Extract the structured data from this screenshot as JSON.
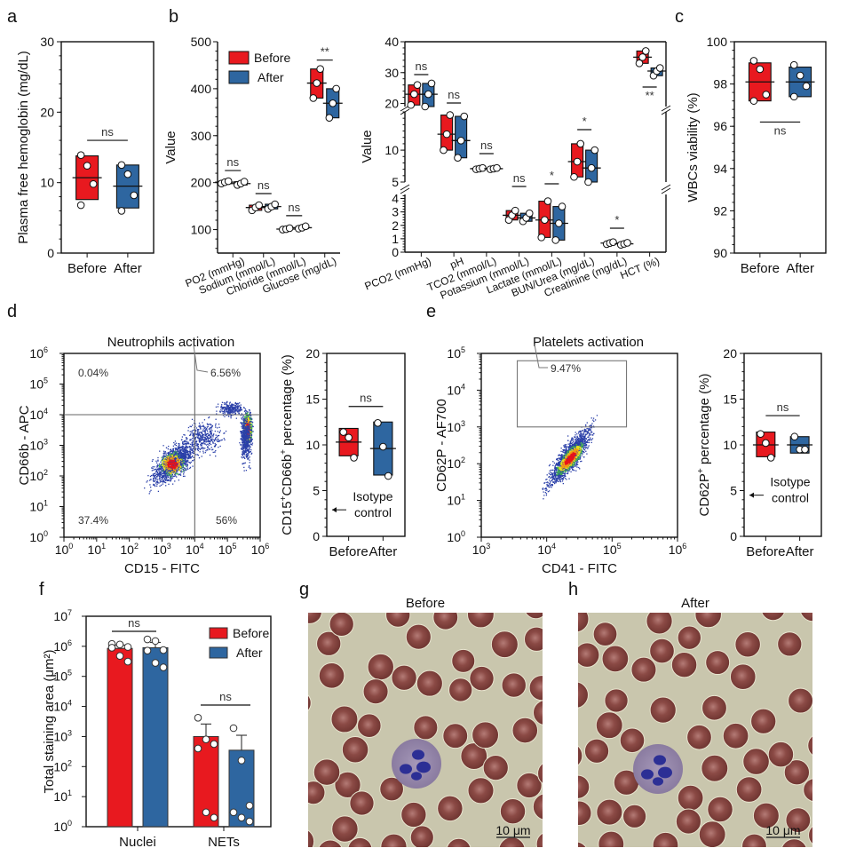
{
  "colors": {
    "before": "#e8191f",
    "after": "#2e66a0"
  },
  "legend": {
    "before": "Before",
    "after": "After"
  },
  "chart_data": [
    {
      "id": "a",
      "panel_label": "a",
      "type": "box",
      "ylabel": "Plasma free hemoglobin (mg/dL)",
      "ylim": [
        0,
        30
      ],
      "yticks": [
        0,
        10,
        20,
        30
      ],
      "categories": [
        "Before",
        "After"
      ],
      "series": [
        {
          "name": "Before",
          "min": 7.6,
          "max": 13.8,
          "median": 10.7,
          "points": [
            13.9,
            12.4,
            9.8,
            6.8
          ]
        },
        {
          "name": "After",
          "min": 6.4,
          "max": 12.5,
          "median": 9.5,
          "points": [
            12.5,
            11.2,
            8.2,
            6.0
          ]
        }
      ],
      "annotations": [
        {
          "text": "ns",
          "y": 16
        }
      ]
    },
    {
      "id": "b1",
      "panel_label": "b",
      "type": "box",
      "ylabel": "Value",
      "ylim": [
        50,
        500
      ],
      "yticks": [
        100,
        200,
        300,
        400,
        500
      ],
      "categories": [
        "PO2 (mmHg)",
        "Sodium (mmol/L)",
        "Chloride (mmol/L)",
        "Glucose (mg/dL)"
      ],
      "series": [
        {
          "name": "Before",
          "boxes": [
            [
              198,
              203,
              201
            ],
            [
              141,
              152,
              147
            ],
            [
              100,
              103,
              101
            ],
            [
              380,
              442,
              412
            ]
          ]
        },
        {
          "name": "After",
          "boxes": [
            [
              195,
              202,
              198
            ],
            [
              144,
              154,
              149
            ],
            [
              102,
              107,
              104
            ],
            [
              338,
              400,
              369
            ]
          ]
        }
      ],
      "annotations": [
        "ns",
        "ns",
        "ns",
        "**"
      ],
      "legend_position": "top-left"
    },
    {
      "id": "b2",
      "type": "box",
      "broken_axis": true,
      "ylabel": "Value",
      "segments": [
        {
          "range": [
            0,
            4.3
          ],
          "ticks": [
            0,
            1,
            2,
            3,
            4
          ]
        },
        {
          "range": [
            5,
            16
          ],
          "ticks": [
            5,
            10
          ]
        },
        {
          "range": [
            19,
            40
          ],
          "ticks": [
            20,
            30,
            40
          ]
        }
      ],
      "categories": [
        "PCO2 (mmHg)",
        "pH",
        "TCO2 (mmol/L)",
        "Potassium (mmol/L)",
        "Lactate (mmol/L)",
        "BUN/Urea (mg/dL)",
        "Creatinine (mg/dL)",
        "HCT (%)"
      ],
      "series": [
        {
          "name": "Before",
          "boxes": [
            [
              19.5,
              26,
              23
            ],
            [
              10,
              15.5,
              12.5
            ],
            [
              7,
              7.2,
              7.1
            ],
            [
              2.4,
              3.1,
              2.75
            ],
            [
              1.1,
              3.8,
              2.4
            ],
            [
              5.8,
              11,
              8.2
            ],
            [
              0.6,
              0.75,
              0.68
            ],
            [
              33,
              37,
              35
            ]
          ]
        },
        {
          "name": "After",
          "boxes": [
            [
              19,
              26.5,
              23
            ],
            [
              8.8,
              15.3,
              11.5
            ],
            [
              7,
              7.2,
              7.1
            ],
            [
              2.3,
              2.9,
              2.55
            ],
            [
              0.9,
              3.4,
              2.15
            ],
            [
              5,
              10,
              7.2
            ],
            [
              0.55,
              0.7,
              0.62
            ],
            [
              29,
              31.5,
              30.5
            ]
          ]
        }
      ],
      "annotations": [
        "ns",
        "ns",
        "ns",
        "ns",
        "*",
        "*",
        "*",
        "**"
      ]
    },
    {
      "id": "c",
      "panel_label": "c",
      "type": "box",
      "ylabel": "WBCs viability (%)",
      "ylim": [
        90,
        100
      ],
      "yticks": [
        90,
        92,
        94,
        96,
        98,
        100
      ],
      "categories": [
        "Before",
        "After"
      ],
      "series": [
        {
          "name": "Before",
          "min": 97.2,
          "max": 99.0,
          "median": 98.1,
          "points": [
            99.1,
            98.7,
            97.5,
            97.2
          ]
        },
        {
          "name": "After",
          "min": 97.4,
          "max": 98.8,
          "median": 98.1,
          "points": [
            98.9,
            98.4,
            97.9,
            97.4
          ]
        }
      ],
      "annotations": [
        {
          "text": "ns",
          "y": 96.2
        }
      ]
    },
    {
      "id": "d_flow",
      "panel_label": "d",
      "type": "scatter",
      "title": "Neutrophils activation",
      "xlabel": "CD15 - FITC",
      "ylabel": "CD66b - APC",
      "xscale": "log",
      "yscale": "log",
      "xlim": [
        0,
        6
      ],
      "ylim": [
        0,
        6
      ],
      "xticks": [
        "10^0",
        "10^1",
        "10^2",
        "10^3",
        "10^4",
        "10^5",
        "10^6"
      ],
      "yticks": [
        "10^0",
        "10^1",
        "10^2",
        "10^3",
        "10^4",
        "10^5",
        "10^6"
      ],
      "gate": {
        "x": 4,
        "y": 4
      },
      "quadrants": {
        "upper_left": "0.04%",
        "upper_right": "6.56%",
        "lower_left": "37.4%",
        "lower_right": "56%"
      }
    },
    {
      "id": "d_box",
      "type": "box",
      "ylabel": "CD15+CD66b+ percentage (%)",
      "ylim": [
        0,
        20
      ],
      "yticks": [
        0,
        5,
        10,
        15,
        20
      ],
      "categories": [
        "Before",
        "After"
      ],
      "series": [
        {
          "name": "Before",
          "min": 8.8,
          "max": 11.8,
          "median": 10.3,
          "points": [
            11.4,
            10.8,
            8.6
          ]
        },
        {
          "name": "After",
          "min": 6.7,
          "max": 12.5,
          "median": 9.6,
          "points": [
            12.4,
            9.8,
            6.6
          ]
        }
      ],
      "annotations": [
        {
          "text": "ns",
          "y": 14.2
        }
      ],
      "isotype": {
        "text1": "Isotype",
        "text2": "control",
        "y": 2.9
      }
    },
    {
      "id": "e_flow",
      "panel_label": "e",
      "type": "scatter",
      "title": "Platelets activation",
      "xlabel": "CD41 - FITC",
      "ylabel": "CD62P - AF700",
      "xscale": "log",
      "yscale": "log",
      "xlim": [
        3,
        6
      ],
      "ylim": [
        0,
        5
      ],
      "xticks": [
        "10^3",
        "10^4",
        "10^5",
        "10^6"
      ],
      "yticks": [
        "10^0",
        "10^1",
        "10^2",
        "10^3",
        "10^4",
        "10^5"
      ],
      "gate_label": "9.47%"
    },
    {
      "id": "e_box",
      "type": "box",
      "ylabel": "CD62P+ percentage (%)",
      "ylim": [
        0,
        20
      ],
      "yticks": [
        0,
        5,
        10,
        15,
        20
      ],
      "categories": [
        "Before",
        "After"
      ],
      "series": [
        {
          "name": "Before",
          "min": 8.7,
          "max": 11.4,
          "median": 10.0,
          "points": [
            11.2,
            10.2,
            8.6
          ]
        },
        {
          "name": "After",
          "min": 9.1,
          "max": 10.9,
          "median": 10.0,
          "points": [
            10.9,
            9.5,
            9.5
          ]
        }
      ],
      "annotations": [
        {
          "text": "ns",
          "y": 13.2
        }
      ],
      "isotype": {
        "text1": "Isotype",
        "text2": "control",
        "y": 4.5
      }
    },
    {
      "id": "f",
      "panel_label": "f",
      "type": "bar",
      "yscale": "log",
      "ylabel": "Total staining area (μm²)",
      "ylim": [
        0,
        7
      ],
      "yticks": [
        "10^0",
        "10^1",
        "10^2",
        "10^3",
        "10^4",
        "10^5",
        "10^6",
        "10^7"
      ],
      "categories": [
        "Nuclei",
        "NETs"
      ],
      "series": [
        {
          "name": "Before",
          "values": [
            850000,
            1000
          ],
          "err": [
            1100000,
            2600
          ],
          "points": [
            [
              1200000,
              1150000,
              950000,
              900000,
              480000,
              310000
            ],
            [
              4200,
              800,
              560,
              400,
              3,
              2
            ]
          ]
        },
        {
          "name": "After",
          "values": [
            900000,
            350
          ],
          "err": [
            1350000,
            1100
          ],
          "points": [
            [
              1700000,
              1500000,
              750000,
              720000,
              280000,
              200000
            ],
            [
              1900,
              160,
              5,
              3,
              2,
              1.5
            ]
          ]
        }
      ],
      "annotations": [
        "ns",
        "ns"
      ],
      "legend_position": "top-right"
    }
  ],
  "panel_g": {
    "label": "g",
    "title": "Before",
    "scale_bar": "10 μm"
  },
  "panel_h": {
    "label": "h",
    "title": "After",
    "scale_bar": "10 μm"
  }
}
